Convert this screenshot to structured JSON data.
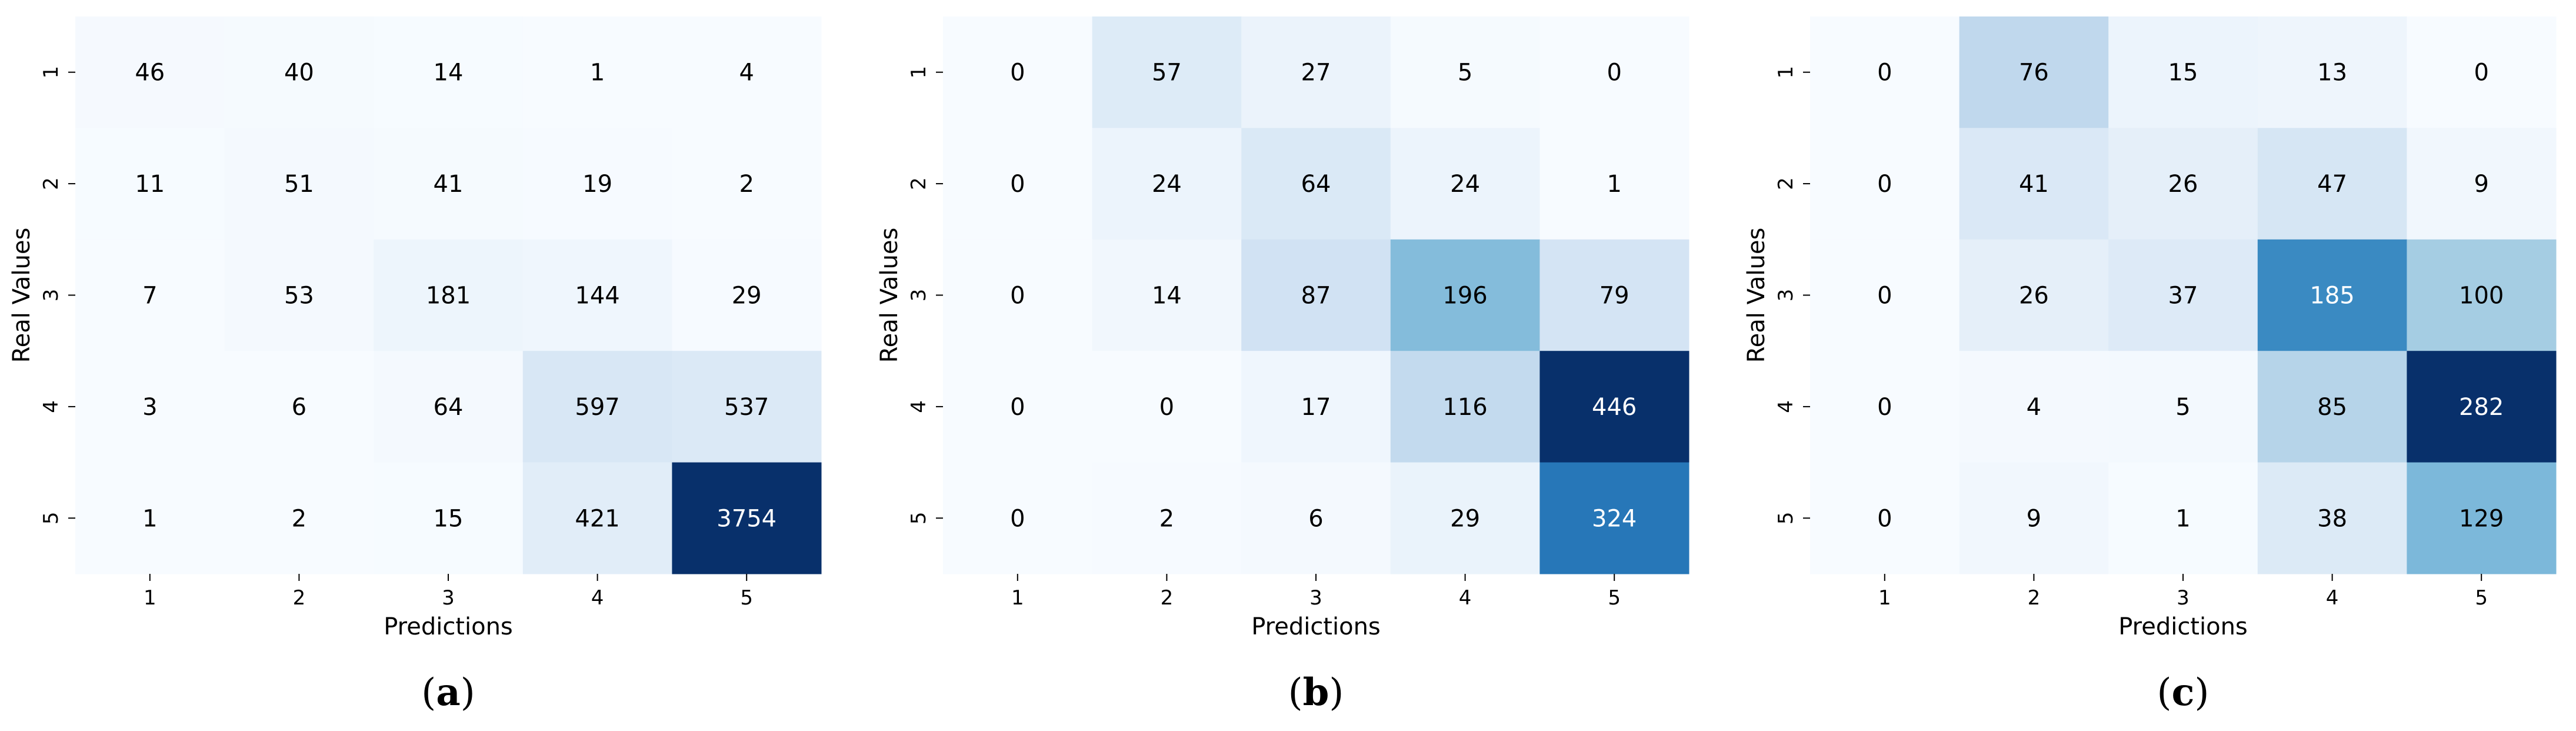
{
  "chart_data": [
    {
      "type": "heatmap",
      "caption_letter": "a",
      "xlabel": "Predictions",
      "ylabel": "Real Values",
      "x_categories": [
        "1",
        "2",
        "3",
        "4",
        "5"
      ],
      "y_categories": [
        "1",
        "2",
        "3",
        "4",
        "5"
      ],
      "colormap": "Blues",
      "values": [
        [
          46,
          40,
          14,
          1,
          4
        ],
        [
          11,
          51,
          41,
          19,
          2
        ],
        [
          7,
          53,
          181,
          144,
          29
        ],
        [
          3,
          6,
          64,
          597,
          537
        ],
        [
          1,
          2,
          15,
          421,
          3754
        ]
      ]
    },
    {
      "type": "heatmap",
      "caption_letter": "b",
      "xlabel": "Predictions",
      "ylabel": "Real Values",
      "x_categories": [
        "1",
        "2",
        "3",
        "4",
        "5"
      ],
      "y_categories": [
        "1",
        "2",
        "3",
        "4",
        "5"
      ],
      "colormap": "Blues",
      "values": [
        [
          0,
          57,
          27,
          5,
          0
        ],
        [
          0,
          24,
          64,
          24,
          1
        ],
        [
          0,
          14,
          87,
          196,
          79
        ],
        [
          0,
          0,
          17,
          116,
          446
        ],
        [
          0,
          2,
          6,
          29,
          324
        ]
      ]
    },
    {
      "type": "heatmap",
      "caption_letter": "c",
      "xlabel": "Predictions",
      "ylabel": "Real Values",
      "x_categories": [
        "1",
        "2",
        "3",
        "4",
        "5"
      ],
      "y_categories": [
        "1",
        "2",
        "3",
        "4",
        "5"
      ],
      "colormap": "Blues",
      "values": [
        [
          0,
          76,
          15,
          13,
          0
        ],
        [
          0,
          41,
          26,
          47,
          9
        ],
        [
          0,
          26,
          37,
          185,
          100
        ],
        [
          0,
          4,
          5,
          85,
          282
        ],
        [
          0,
          9,
          1,
          38,
          129
        ]
      ]
    }
  ]
}
